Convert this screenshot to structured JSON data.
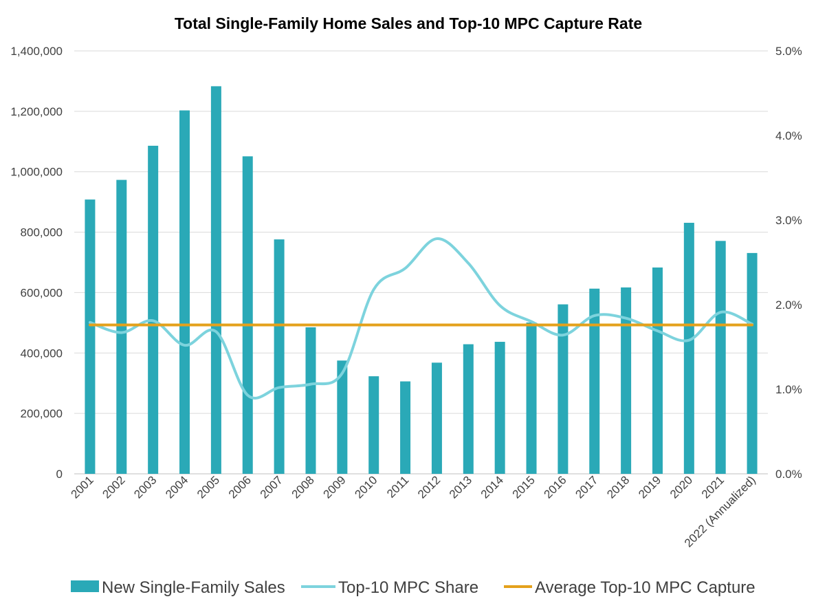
{
  "chart_data": {
    "type": "bar",
    "title": "Total Single-Family Home Sales and Top-10 MPC Capture Rate",
    "categories": [
      "2001",
      "2002",
      "2003",
      "2004",
      "2005",
      "2006",
      "2007",
      "2008",
      "2009",
      "2010",
      "2011",
      "2012",
      "2013",
      "2014",
      "2015",
      "2016",
      "2017",
      "2018",
      "2019",
      "2020",
      "2021",
      "2022 (Annualized)"
    ],
    "y_left": {
      "ylim": [
        0,
        1400000
      ],
      "ticks": [
        0,
        200000,
        400000,
        600000,
        800000,
        1000000,
        1200000,
        1400000
      ],
      "tick_labels": [
        "0",
        "200,000",
        "400,000",
        "600,000",
        "800,000",
        "1,000,000",
        "1,200,000",
        "1,400,000"
      ]
    },
    "y_right": {
      "ylim": [
        0,
        0.05
      ],
      "ticks": [
        0,
        0.01,
        0.02,
        0.03,
        0.04,
        0.05
      ],
      "tick_labels": [
        "0.0%",
        "1.0%",
        "2.0%",
        "3.0%",
        "4.0%",
        "5.0%"
      ]
    },
    "grid": true,
    "legend_position": "bottom",
    "series": [
      {
        "name": "New Single-Family Sales",
        "type": "bar",
        "axis": "left",
        "color": "#2aa9b7",
        "values": [
          908000,
          973000,
          1086000,
          1203000,
          1283000,
          1051000,
          776000,
          485000,
          375000,
          323000,
          306000,
          368000,
          429000,
          437000,
          501000,
          561000,
          613000,
          617000,
          683000,
          831000,
          771000,
          731000
        ]
      },
      {
        "name": "Top-10 MPC Share",
        "type": "line",
        "axis": "right",
        "color": "#7dd3dd",
        "values": [
          0.0179,
          0.0167,
          0.0181,
          0.0152,
          0.0168,
          0.0093,
          0.0102,
          0.0106,
          0.0119,
          0.0218,
          0.0243,
          0.0278,
          0.0249,
          0.0199,
          0.018,
          0.0164,
          0.0187,
          0.0184,
          0.0169,
          0.0158,
          0.0191,
          0.0177
        ]
      },
      {
        "name": "Average Top-10 MPC Capture",
        "type": "line",
        "axis": "right",
        "color": "#e4a11b",
        "values": [
          0.0176,
          0.0176,
          0.0176,
          0.0176,
          0.0176,
          0.0176,
          0.0176,
          0.0176,
          0.0176,
          0.0176,
          0.0176,
          0.0176,
          0.0176,
          0.0176,
          0.0176,
          0.0176,
          0.0176,
          0.0176,
          0.0176,
          0.0176,
          0.0176,
          0.0176
        ]
      }
    ]
  }
}
